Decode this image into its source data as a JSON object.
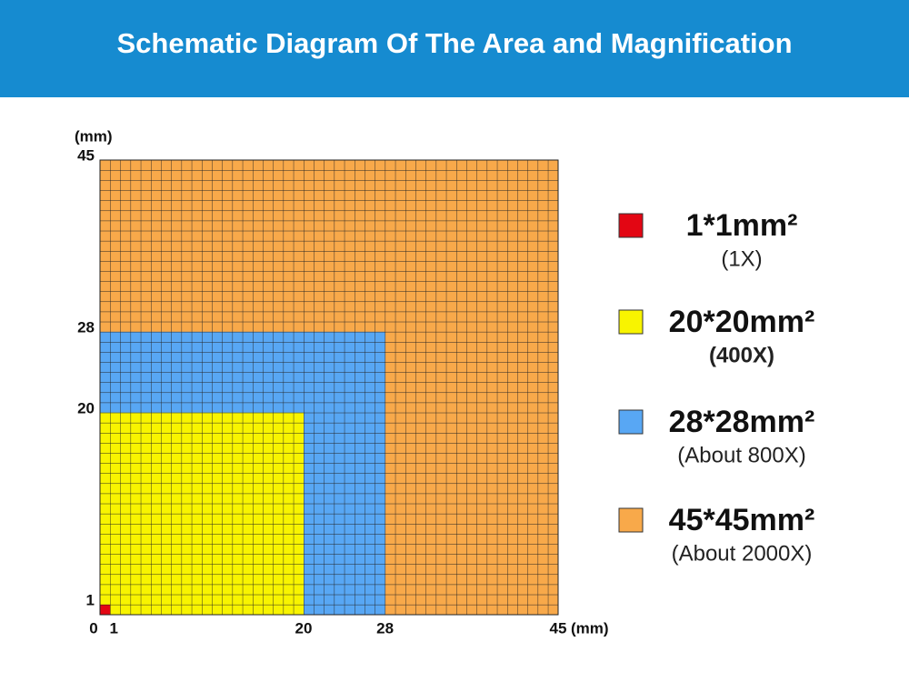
{
  "chart_data": {
    "type": "nested-squares",
    "title": "Schematic Diagram Of The Area and Magnification",
    "x_unit": "(mm)",
    "y_unit": "(mm)",
    "xlim": [
      0,
      45
    ],
    "ylim": [
      0,
      45
    ],
    "xticks": [
      0,
      1,
      20,
      28,
      45
    ],
    "yticks": [
      1,
      20,
      28,
      45
    ],
    "grid_step": 1,
    "series": [
      {
        "name": "1*1mm²",
        "label": "(1X)",
        "value": 1,
        "color": "#e30613"
      },
      {
        "name": "20*20mm²",
        "label": "(400X)",
        "label_color": "#d0121b",
        "value": 20,
        "color": "#f8f400"
      },
      {
        "name": "28*28mm²",
        "label": "(About 800X)",
        "value": 28,
        "color": "#58a7f4"
      },
      {
        "name": "45*45mm²",
        "label": "(About 2000X)",
        "value": 45,
        "color": "#f8a94a"
      }
    ]
  }
}
